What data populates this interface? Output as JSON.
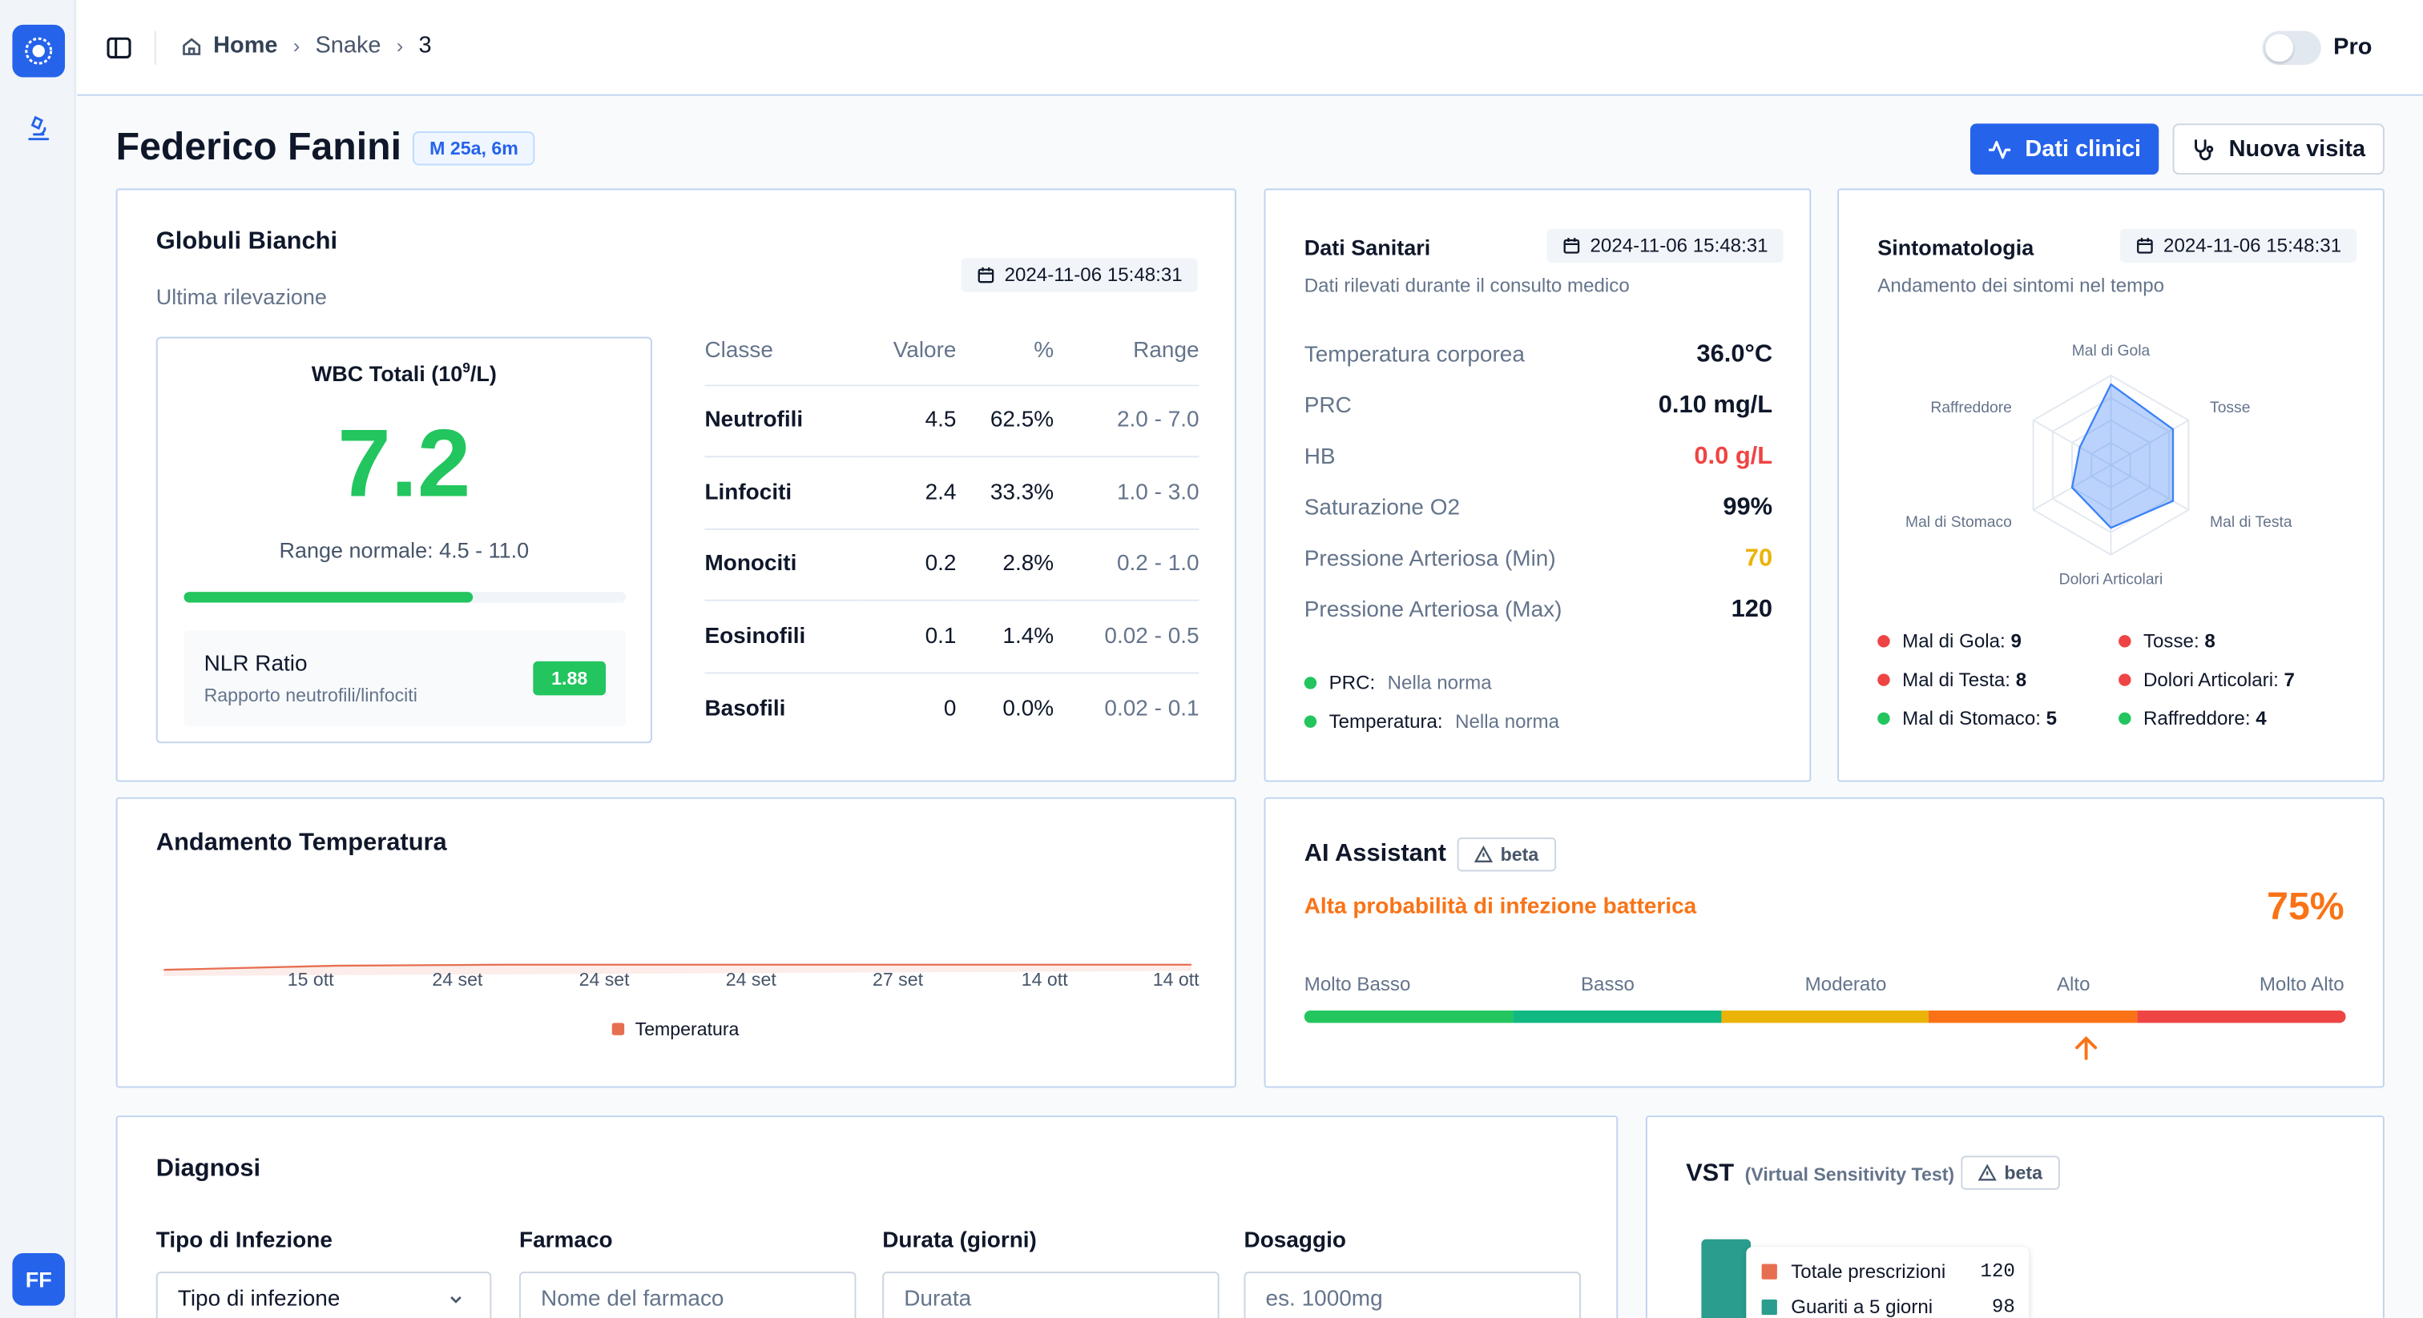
{
  "breadcrumb": {
    "home": "Home",
    "section": "Snake",
    "current": "3"
  },
  "header": {
    "pro_label": "Pro"
  },
  "patient": {
    "name": "Federico Fanini",
    "badge": "M 25a, 6m"
  },
  "actions": {
    "clinical_data": "Dati clinici",
    "new_visit": "Nuova visita"
  },
  "user": {
    "initials": "FF"
  },
  "wbc": {
    "title": "Globuli Bianchi",
    "subtitle": "Ultima rilevazione",
    "date": "2024-11-06 15:48:31",
    "total_label": "WBC Totali (10",
    "total_sup": "9",
    "total_unit": "/L)",
    "total_value": "7.2",
    "range_text": "Range normale: 4.5 - 11.0",
    "bar_fraction": 0.655,
    "nlr_title": "NLR Ratio",
    "nlr_sub": "Rapporto neutrofili/linfociti",
    "nlr_value": "1.88",
    "table": {
      "headers": [
        "Classe",
        "Valore",
        "%",
        "Range"
      ],
      "rows": [
        {
          "classe": "Neutrofili",
          "valore": "4.5",
          "perc": "62.5%",
          "range": "2.0 - 7.0"
        },
        {
          "classe": "Linfociti",
          "valore": "2.4",
          "perc": "33.3%",
          "range": "1.0 - 3.0"
        },
        {
          "classe": "Monociti",
          "valore": "0.2",
          "perc": "2.8%",
          "range": "0.2 - 1.0"
        },
        {
          "classe": "Eosinofili",
          "valore": "0.1",
          "perc": "1.4%",
          "range": "0.02 - 0.5"
        },
        {
          "classe": "Basofili",
          "valore": "0",
          "perc": "0.0%",
          "range": "0.02 - 0.1"
        }
      ]
    }
  },
  "health": {
    "title": "Dati Sanitari",
    "date": "2024-11-06 15:48:31",
    "subtitle": "Dati rilevati durante il consulto medico",
    "vitals": [
      {
        "label": "Temperatura corporea",
        "value": "36.0°C",
        "color": "#0f172a"
      },
      {
        "label": "PRC",
        "value": "0.10 mg/L",
        "color": "#0f172a"
      },
      {
        "label": "HB",
        "value": "0.0 g/L",
        "color": "#ef4444"
      },
      {
        "label": "Saturazione O2",
        "value": "99%",
        "color": "#0f172a"
      },
      {
        "label": "Pressione Arteriosa (Min)",
        "value": "70",
        "color": "#eab308"
      },
      {
        "label": "Pressione Arteriosa (Max)",
        "value": "120",
        "color": "#0f172a"
      }
    ],
    "status": [
      {
        "key": "PRC:",
        "value": "Nella norma",
        "color": "#22c55e"
      },
      {
        "key": "Temperatura:",
        "value": "Nella norma",
        "color": "#22c55e"
      }
    ]
  },
  "symptoms": {
    "title": "Sintomatologia",
    "date": "2024-11-06 15:48:31",
    "subtitle": "Andamento dei sintomi nel tempo",
    "axes": [
      "Mal di Gola",
      "Tosse",
      "Mal di Testa",
      "Dolori Articolari",
      "Mal di Stomaco",
      "Raffreddore"
    ],
    "max": 10,
    "values": [
      9,
      8,
      8,
      7,
      5,
      4
    ],
    "legend": [
      {
        "label": "Mal di Gola:",
        "value": "9",
        "color": "#ef4444"
      },
      {
        "label": "Tosse:",
        "value": "8",
        "color": "#ef4444"
      },
      {
        "label": "Mal di Testa:",
        "value": "8",
        "color": "#ef4444"
      },
      {
        "label": "Dolori Articolari:",
        "value": "7",
        "color": "#ef4444"
      },
      {
        "label": "Mal di Stomaco:",
        "value": "5",
        "color": "#22c55e"
      },
      {
        "label": "Raffreddore:",
        "value": "4",
        "color": "#22c55e"
      }
    ]
  },
  "chart_data": {
    "type": "line",
    "title": "Andamento Temperatura",
    "categories": [
      "15 ott",
      "24 set",
      "24 set",
      "24 set",
      "27 set",
      "14 ott",
      "14 ott"
    ],
    "series": [
      {
        "name": "Temperatura",
        "color": "#e76f51",
        "values": [
          35.9,
          36.3,
          36.4,
          36.4,
          36.4,
          36.4,
          36.4
        ]
      }
    ],
    "ylim": [
      30,
      45
    ],
    "grid": false,
    "legend": "bottom"
  },
  "ai": {
    "title": "AI Assistant",
    "beta": "beta",
    "message": "Alta probabilità di infezione batterica",
    "percent": "75%",
    "level_fraction": 0.75,
    "levels": [
      "Molto Basso",
      "Basso",
      "Moderato",
      "Alto",
      "Molto Alto"
    ],
    "level_colors": [
      "#22c55e",
      "#10b981",
      "#eab308",
      "#f97316",
      "#ef4444"
    ],
    "accent": "#f97316"
  },
  "diagnosis": {
    "title": "Diagnosi",
    "fields": [
      {
        "label": "Tipo di Infezione",
        "placeholder": "Tipo di infezione"
      },
      {
        "label": "Farmaco",
        "placeholder": "Nome del farmaco"
      },
      {
        "label": "Durata (giorni)",
        "placeholder": "Durata"
      },
      {
        "label": "Dosaggio",
        "placeholder": "es. 1000mg"
      }
    ]
  },
  "vst": {
    "title": "VST",
    "subtitle": "(Virtual Sensitivity Test)",
    "beta": "beta",
    "legend": [
      {
        "label": "Totale prescrizioni",
        "value": "120",
        "color": "#e76f51"
      },
      {
        "label": "Guariti a 5 giorni",
        "value": "98",
        "color": "#2a9d8f"
      }
    ]
  }
}
